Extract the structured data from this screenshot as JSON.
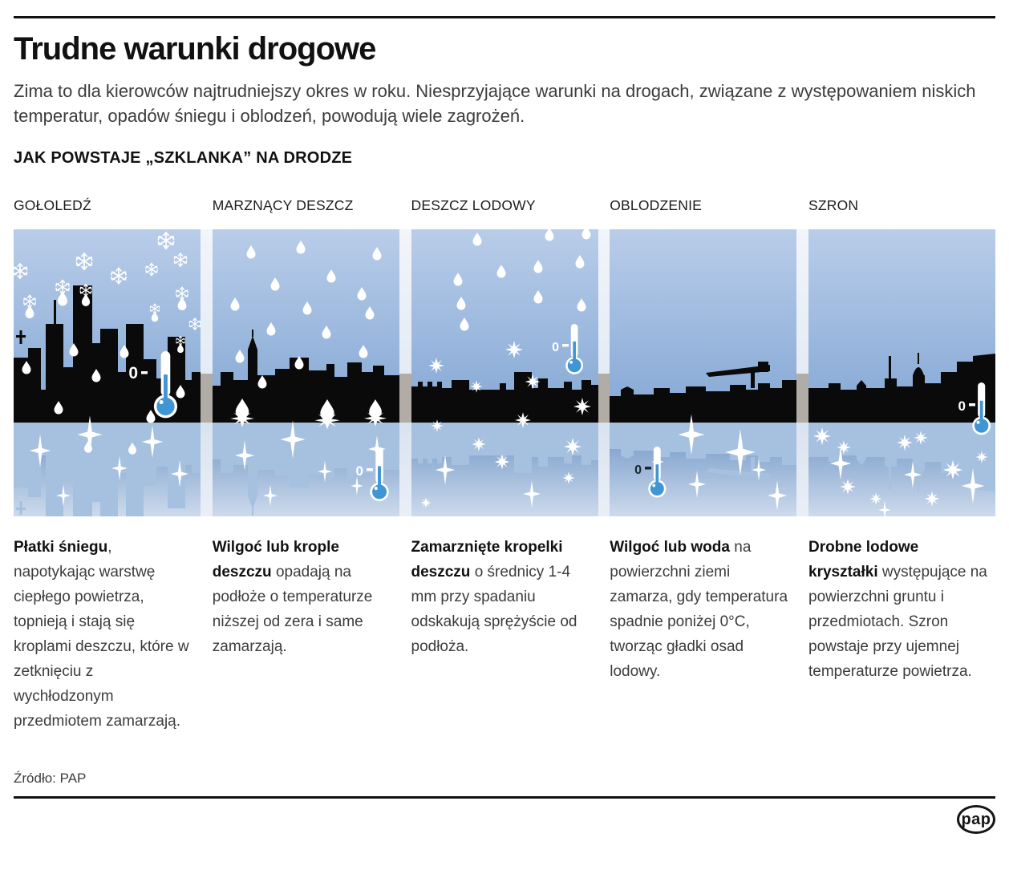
{
  "header": {
    "title": "Trudne warunki drogowe",
    "intro": "Zima to dla kierowców najtrudniejszy okres w roku. Niesprzyjające warunki na drogach, związane z występowaniem niskich temperatur, opadów śniegu i oblodzeń, powodują wiele zagrożeń.",
    "section_title": "JAK POWSTAJE „SZKLANKA” NA DRODZE"
  },
  "panels": [
    {
      "label": "GOŁOLEDŹ",
      "temp_label": "0",
      "illustration": "snowfall-melting-over-city-skyline-with-icy-road",
      "description": {
        "lead": "Płatki śniegu",
        "rest": ", napotykając warstwę ciepłego powietrza, topnieją i stają się kroplami deszczu, które w zetknięciu z wychłodzonym przedmiotem zamarzają."
      }
    },
    {
      "label": "MARZNĄCY DESZCZ",
      "temp_label": "0",
      "illustration": "rain-freezing-on-ground-over-town-skyline",
      "description": {
        "lead": "Wilgoć lub krople deszczu",
        "rest": " opadają na podłoże o temperaturze niższej od zera i same zamarzają."
      }
    },
    {
      "label": "DESZCZ LODOWY",
      "temp_label": "0",
      "illustration": "ice-pellets-bouncing-over-low-skyline",
      "description": {
        "lead": "Zamarznięte kropelki deszczu",
        "rest": " o średnicy 1-4 mm przy spadaniu odskakują sprężyście od podłoża."
      }
    },
    {
      "label": "OBLODZENIE",
      "temp_label": "0",
      "illustration": "smooth-ice-layer-skyline-with-crane",
      "description": {
        "lead": "Wilgoć lub woda",
        "rest": " na powierzchni ziemi zamarza, gdy temperatura spadnie poniżej 0°C, tworząc gładki osad lodowy."
      }
    },
    {
      "label": "SZRON",
      "temp_label": "0",
      "illustration": "frost-crystals-on-ground-church-skyline",
      "description": {
        "lead": "Drobne lodowe kryształki",
        "rest": " występujące na powierzchni gruntu i przedmiotach. Szron powstaje przy ujemnej temperaturze powietrza."
      }
    }
  ],
  "footer": {
    "source": "Źródło: PAP",
    "logo_text": "pap"
  },
  "colors": {
    "text": "#111111",
    "body_text": "#3c3c3c",
    "rule": "#111111",
    "sky_top": "#b9cde9",
    "sky_bottom": "#83a7d4",
    "water_top": "#6d94c5",
    "water_bottom": "#cddaec",
    "reflection": "#a6c0e0",
    "silhouette": "#0a0a0a",
    "backdrop_gray": "#b1aca6",
    "thermo_blue": "#4095d5",
    "label_dark": "#1b2430"
  }
}
